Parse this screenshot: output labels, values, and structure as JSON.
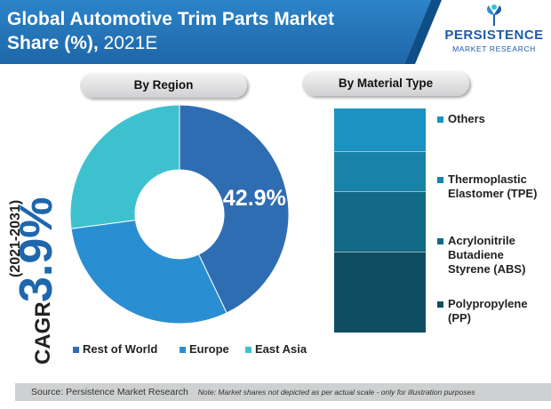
{
  "header": {
    "title_line1": "Global Automotive Trim Parts Market",
    "title_line2": "Share (%),",
    "title_suffix": "2021E"
  },
  "logo": {
    "name": "PERSISTENCE",
    "tagline": "MARKET RESEARCH",
    "icon": "persistence-logo-icon"
  },
  "cagr": {
    "prefix": "CAGR",
    "value": "3.9%",
    "period": "(2021-2031)"
  },
  "colors": {
    "header_blue": "#2272b5",
    "rest_of_world": "#2f6db3",
    "europe": "#2a8fd2",
    "east_asia": "#3ec1cf",
    "others": "#1b92c0",
    "tpe": "#1882a9",
    "abs": "#126a86",
    "pp": "#0f4d63"
  },
  "chart_data": [
    {
      "type": "pie",
      "title": "By Region",
      "slices": [
        {
          "name": "Rest of World",
          "value": 42.9,
          "label": "42.9%",
          "color": "#2f6db3"
        },
        {
          "name": "Europe",
          "value": 30.0,
          "color": "#2a8fd2"
        },
        {
          "name": "East Asia",
          "value": 27.1,
          "color": "#3ec1cf"
        }
      ],
      "legend": {
        "placement": "bottom"
      }
    },
    {
      "type": "bar",
      "title": "By Material Type",
      "stacked": true,
      "categories": [
        "Polypropylene (PP)",
        "Acrylonitrile Butadiene Styrene (ABS)",
        "Thermoplastic Elastomer (TPE)",
        "Others"
      ],
      "values": [
        36,
        27,
        18,
        19
      ],
      "colors": [
        "#0f4d63",
        "#126a86",
        "#1882a9",
        "#1b92c0"
      ],
      "legend": {
        "placement": "right"
      }
    }
  ],
  "legend_region": [
    "Rest of World",
    "Europe",
    "East Asia"
  ],
  "legend_material": [
    {
      "lines": [
        "Others"
      ]
    },
    {
      "lines": [
        "Thermoplastic",
        "Elastomer (TPE)"
      ]
    },
    {
      "lines": [
        "Acrylonitrile",
        "Butadiene",
        "Styrene (ABS)"
      ]
    },
    {
      "lines": [
        "Polypropylene",
        "(PP)"
      ]
    }
  ],
  "footer": {
    "source": "Source: Persistence Market Research",
    "note": "Note: Market shares not depicted as per actual scale - only for illustration purposes"
  }
}
